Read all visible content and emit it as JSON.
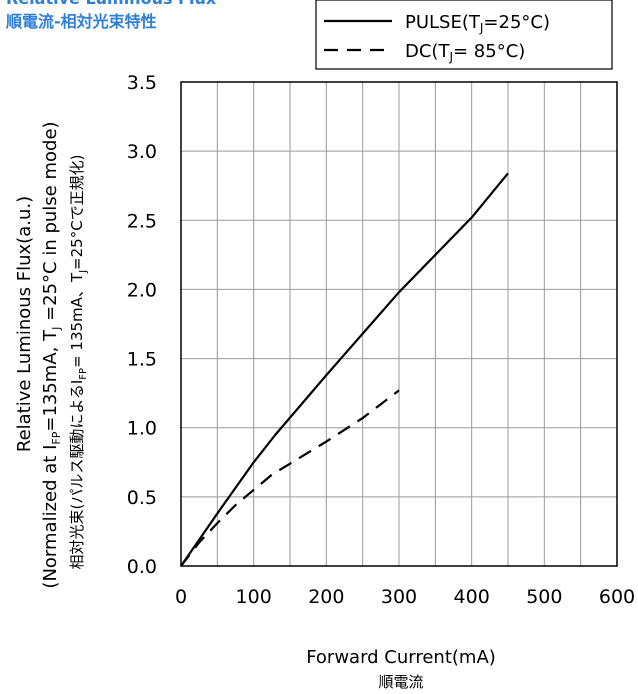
{
  "title_en": "Relative Luminous Flux",
  "title_jp": "順電流-相対光束特性",
  "chart_data": {
    "type": "line",
    "xlabel": "Forward Current(mA)",
    "xlabel_jp": "順電流",
    "ylabel_lines": [
      "Relative Luminous Flux(a.u.)",
      "(Normalized at I_FP=135mA, T_J =25°C in pulse mode)",
      "相対光束(パルス駆動によるI_FP= 135mA、T_J=25°Cで正規化)"
    ],
    "xlim": [
      0,
      600
    ],
    "ylim": [
      0,
      3.5
    ],
    "xticks": [
      0,
      100,
      200,
      300,
      400,
      500,
      600
    ],
    "yticks": [
      0,
      0.5,
      1,
      1.5,
      2,
      2.5,
      3,
      3.5
    ],
    "xtick_labels": [
      "0",
      "100",
      "200",
      "300",
      "400",
      "500",
      "600"
    ],
    "ytick_labels": [
      "0.0",
      "0.5",
      "1.0",
      "1.5",
      "2.0",
      "2.5",
      "3.0",
      "3.5"
    ],
    "grid": true,
    "legend_position": "top-right",
    "series": [
      {
        "name": "PULSE(TJ=25°C)",
        "style": "solid",
        "color": "#000000",
        "x": [
          0,
          50,
          100,
          130,
          200,
          300,
          400,
          450
        ],
        "y": [
          0,
          0.38,
          0.75,
          0.95,
          1.38,
          1.98,
          2.52,
          2.84
        ]
      },
      {
        "name": "DC(TJ= 85°C)",
        "style": "dashed",
        "color": "#000000",
        "x": [
          0,
          25,
          50,
          75,
          100,
          125,
          150,
          200,
          250,
          300
        ],
        "y": [
          0,
          0.17,
          0.31,
          0.44,
          0.55,
          0.66,
          0.74,
          0.9,
          1.07,
          1.27
        ]
      }
    ]
  }
}
